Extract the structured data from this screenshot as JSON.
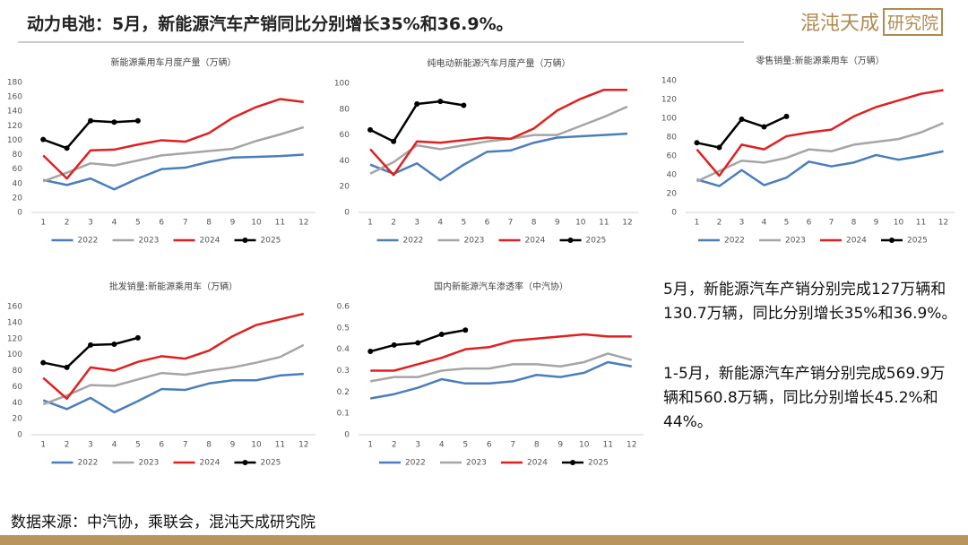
{
  "header": {
    "title": "动力电池：5月，新能源汽车产销同比分别增长35%和36.9%。",
    "logo": "混沌天成",
    "logo_box": "研究院"
  },
  "notes": [
    "5月，新能源汽车产销分别完成127万辆和130.7万辆，同比分别增长35%和36.9%。",
    "1-5月，新能源汽车产销分别完成569.9万辆和560.8万辆，同比分别增长45.2%和44%。"
  ],
  "source": "数据来源：中汽协，乘联会，混沌天成研究院",
  "chart_data": [
    {
      "type": "line",
      "title": "新能源乘用车月度产量（万辆）",
      "categories": [
        "1",
        "2",
        "3",
        "4",
        "5",
        "6",
        "7",
        "8",
        "9",
        "10",
        "11",
        "12"
      ],
      "ylim": [
        0,
        180
      ],
      "yticks": [
        0,
        20,
        40,
        60,
        80,
        100,
        120,
        140,
        160,
        180
      ],
      "series": [
        {
          "name": "2022",
          "color": "#4a7ebb",
          "values": [
            45,
            38,
            47,
            32,
            47,
            60,
            62,
            70,
            76,
            77,
            78,
            80
          ]
        },
        {
          "name": "2023",
          "color": "#a5a5a5",
          "values": [
            43,
            55,
            68,
            65,
            72,
            79,
            82,
            85,
            88,
            99,
            108,
            118
          ]
        },
        {
          "name": "2024",
          "color": "#e02020",
          "values": [
            79,
            47,
            86,
            87,
            94,
            100,
            98,
            110,
            131,
            146,
            157,
            153
          ]
        },
        {
          "name": "2025",
          "color": "#000000",
          "marker": "circle",
          "values": [
            101,
            89,
            127,
            125,
            127,
            null,
            null,
            null,
            null,
            null,
            null,
            null
          ]
        }
      ]
    },
    {
      "type": "line",
      "title": "纯电动新能源汽车月度产量（万辆）",
      "categories": [
        "1",
        "2",
        "3",
        "4",
        "5",
        "6",
        "7",
        "8",
        "9",
        "10",
        "11",
        "12"
      ],
      "ylim": [
        0,
        100
      ],
      "yticks": [
        0,
        20,
        40,
        60,
        80,
        100
      ],
      "series": [
        {
          "name": "2022",
          "color": "#4a7ebb",
          "values": [
            37,
            30,
            38,
            25,
            37,
            47,
            48,
            54,
            58,
            59,
            60,
            61
          ]
        },
        {
          "name": "2023",
          "color": "#a5a5a5",
          "values": [
            30,
            39,
            52,
            49,
            52,
            55,
            57,
            60,
            60,
            67,
            74,
            82
          ]
        },
        {
          "name": "2024",
          "color": "#e02020",
          "values": [
            49,
            29,
            55,
            54,
            56,
            58,
            57,
            65,
            79,
            88,
            95,
            95
          ]
        },
        {
          "name": "2025",
          "color": "#000000",
          "marker": "circle",
          "values": [
            64,
            55,
            84,
            86,
            83,
            null,
            null,
            null,
            null,
            null,
            null,
            null
          ]
        }
      ]
    },
    {
      "type": "line",
      "title": "零售销量:新能源乘用车（万辆）",
      "categories": [
        "1",
        "2",
        "3",
        "4",
        "5",
        "6",
        "7",
        "8",
        "9",
        "10",
        "11",
        "12"
      ],
      "ylim": [
        0,
        140
      ],
      "yticks": [
        0,
        20,
        40,
        60,
        80,
        100,
        120,
        140
      ],
      "series": [
        {
          "name": "2022",
          "color": "#4a7ebb",
          "values": [
            35,
            28,
            45,
            29,
            37,
            54,
            49,
            53,
            61,
            56,
            60,
            65
          ]
        },
        {
          "name": "2023",
          "color": "#a5a5a5",
          "values": [
            33,
            44,
            55,
            53,
            58,
            67,
            65,
            72,
            75,
            78,
            85,
            95
          ]
        },
        {
          "name": "2024",
          "color": "#e02020",
          "values": [
            67,
            39,
            72,
            67,
            81,
            85,
            88,
            102,
            112,
            119,
            126,
            130
          ]
        },
        {
          "name": "2025",
          "color": "#000000",
          "marker": "circle",
          "values": [
            74,
            69,
            99,
            91,
            102,
            null,
            null,
            null,
            null,
            null,
            null,
            null
          ]
        }
      ]
    },
    {
      "type": "line",
      "title": "批发销量:新能源乘用车（万辆）",
      "categories": [
        "1",
        "2",
        "3",
        "4",
        "5",
        "6",
        "7",
        "8",
        "9",
        "10",
        "11",
        "12"
      ],
      "ylim": [
        0,
        160
      ],
      "yticks": [
        0,
        20,
        40,
        60,
        80,
        100,
        120,
        140,
        160
      ],
      "series": [
        {
          "name": "2022",
          "color": "#4a7ebb",
          "values": [
            43,
            32,
            46,
            28,
            42,
            57,
            56,
            64,
            68,
            68,
            74,
            76
          ]
        },
        {
          "name": "2023",
          "color": "#a5a5a5",
          "values": [
            38,
            49,
            62,
            61,
            69,
            77,
            75,
            80,
            84,
            90,
            97,
            112
          ]
        },
        {
          "name": "2024",
          "color": "#e02020",
          "values": [
            71,
            45,
            84,
            80,
            91,
            98,
            95,
            105,
            123,
            137,
            144,
            151
          ]
        },
        {
          "name": "2025",
          "color": "#000000",
          "marker": "circle",
          "values": [
            90,
            84,
            112,
            113,
            121,
            null,
            null,
            null,
            null,
            null,
            null,
            null
          ]
        }
      ]
    },
    {
      "type": "line",
      "title": "国内新能源汽车渗透率（中汽协）",
      "categories": [
        "1",
        "2",
        "3",
        "4",
        "5",
        "6",
        "7",
        "8",
        "9",
        "10",
        "11",
        "12"
      ],
      "ylim": [
        0,
        0.6
      ],
      "yticks": [
        0,
        0.1,
        0.2,
        0.3,
        0.4,
        0.5,
        0.6
      ],
      "series": [
        {
          "name": "2022",
          "color": "#4a7ebb",
          "values": [
            0.17,
            0.19,
            0.22,
            0.26,
            0.24,
            0.24,
            0.25,
            0.28,
            0.27,
            0.29,
            0.34,
            0.32
          ]
        },
        {
          "name": "2023",
          "color": "#a5a5a5",
          "values": [
            0.25,
            0.27,
            0.27,
            0.3,
            0.31,
            0.31,
            0.33,
            0.33,
            0.32,
            0.34,
            0.38,
            0.35
          ]
        },
        {
          "name": "2024",
          "color": "#e02020",
          "values": [
            0.3,
            0.3,
            0.33,
            0.36,
            0.4,
            0.41,
            0.44,
            0.45,
            0.46,
            0.47,
            0.46,
            0.46
          ]
        },
        {
          "name": "2025",
          "color": "#000000",
          "marker": "circle",
          "values": [
            0.39,
            0.42,
            0.43,
            0.47,
            0.49,
            null,
            null,
            null,
            null,
            null,
            null,
            null
          ]
        }
      ]
    }
  ]
}
